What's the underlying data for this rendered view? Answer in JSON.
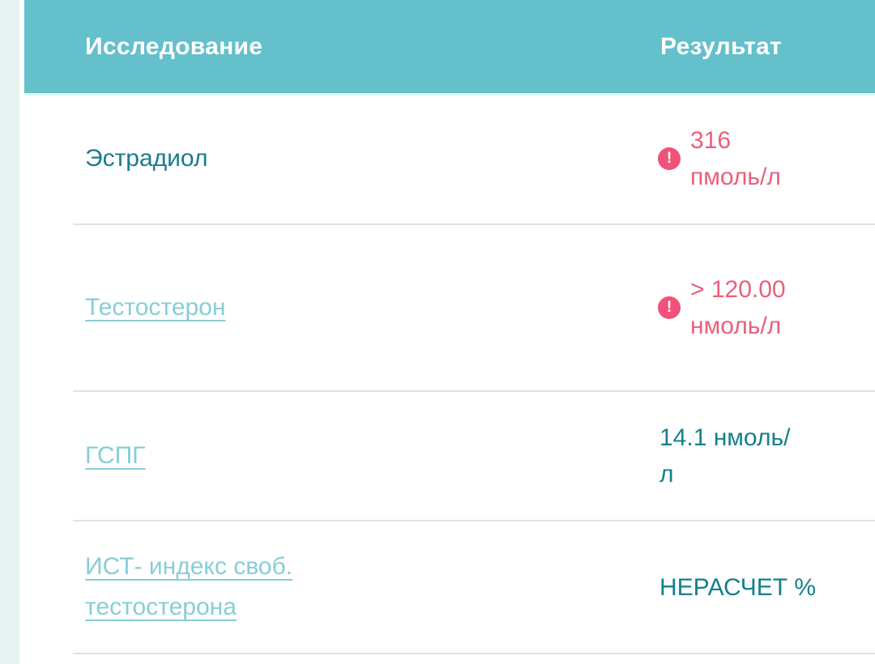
{
  "page": {
    "left_strip_color": "#e6f3f1"
  },
  "table": {
    "header": {
      "study_column": "Исследование",
      "result_column": "Результат",
      "background_color": "#64c0ca",
      "text_color": "#ffffff"
    },
    "warning_icon_glyph": "!",
    "rows": [
      {
        "name": "Эстрадиол",
        "is_link": false,
        "flagged": true,
        "result": "316 пмоль/л",
        "result_lines": {
          "0": "316",
          "1": "пмоль/л"
        }
      },
      {
        "name": "Тестостерон",
        "is_link": true,
        "flagged": true,
        "result": "> 120.00 нмоль/л",
        "result_lines": {
          "0": "> 120.00",
          "1": "нмоль/л"
        }
      },
      {
        "name": "ГСПГ",
        "is_link": true,
        "flagged": false,
        "result": "14.1 нмоль/л",
        "result_lines": {
          "0": "14.1 нмоль/",
          "1": "л"
        }
      },
      {
        "name": "ИСТ- индекс своб. тестостерона",
        "is_link": true,
        "flagged": false,
        "result": "НЕРАСЧЕТ %",
        "result_lines": {
          "0": "НЕРАСЧЕТ %"
        }
      }
    ],
    "colors": {
      "flagged_result_text": "#e8617c",
      "warning_icon_background": "#f0527a",
      "normal_result_text": "#14808c",
      "test_link_text": "#87ced7",
      "test_name_text": "#1b7b8e",
      "divider": "#e2e2e2"
    }
  }
}
